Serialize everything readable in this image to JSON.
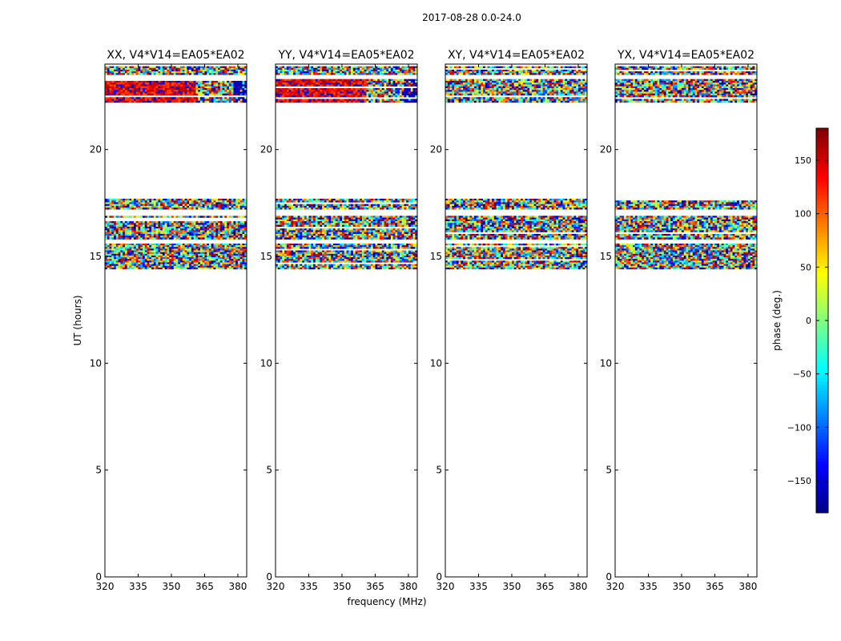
{
  "figure_title": "2017-08-28 0.0-24.0",
  "chart_data": {
    "type": "heatmap",
    "xlabel": "frequency (MHz)",
    "ylabel": "UT (hours)",
    "xlim": [
      320,
      384
    ],
    "ylim": [
      0,
      24
    ],
    "x_ticks": [
      320,
      335,
      350,
      365,
      380
    ],
    "y_ticks": [
      0,
      5,
      10,
      15,
      20
    ],
    "colorbar": {
      "label": "phase (deg.)",
      "range": [
        -180,
        180
      ],
      "ticks": [
        -150,
        -100,
        -50,
        0,
        50,
        100,
        150
      ],
      "colormap": "jet",
      "colors": [
        "#00007f",
        "#0000ff",
        "#007fff",
        "#00ffff",
        "#7fff7f",
        "#ffff00",
        "#ff7f00",
        "#ff0000",
        "#7f0000"
      ]
    },
    "panels": [
      {
        "title": "XX, V4*V14=EA05*EA02",
        "polarization": "XX",
        "data_rows": [
          {
            "ut_start": 14.4,
            "ut_end": 15.6,
            "phase": "random"
          },
          {
            "ut_start": 15.8,
            "ut_end": 16.9,
            "phase": "random"
          },
          {
            "ut_start": 17.2,
            "ut_end": 17.7,
            "phase": "random"
          },
          {
            "ut_start": 22.2,
            "ut_end": 23.3,
            "phase": "red_to_blue",
            "mean_deg": 150,
            "freq_split": 361
          },
          {
            "ut_start": 23.5,
            "ut_end": 23.9,
            "phase": "random"
          }
        ]
      },
      {
        "title": "YY, V4*V14=EA05*EA02",
        "polarization": "YY",
        "data_rows": [
          {
            "ut_start": 14.4,
            "ut_end": 15.6,
            "phase": "random"
          },
          {
            "ut_start": 15.8,
            "ut_end": 16.9,
            "phase": "random"
          },
          {
            "ut_start": 17.2,
            "ut_end": 17.7,
            "phase": "random"
          },
          {
            "ut_start": 22.2,
            "ut_end": 23.3,
            "phase": "red_to_blue",
            "mean_deg": 150,
            "freq_split": 361
          },
          {
            "ut_start": 23.5,
            "ut_end": 23.9,
            "phase": "random"
          }
        ]
      },
      {
        "title": "XY, V4*V14=EA05*EA02",
        "polarization": "XY",
        "data_rows": [
          {
            "ut_start": 14.4,
            "ut_end": 15.6,
            "phase": "random"
          },
          {
            "ut_start": 15.8,
            "ut_end": 16.9,
            "phase": "random"
          },
          {
            "ut_start": 17.2,
            "ut_end": 17.7,
            "phase": "random"
          },
          {
            "ut_start": 22.2,
            "ut_end": 23.3,
            "phase": "random"
          },
          {
            "ut_start": 23.5,
            "ut_end": 23.9,
            "phase": "random"
          }
        ]
      },
      {
        "title": "YX, V4*V14=EA05*EA02",
        "polarization": "YX",
        "data_rows": [
          {
            "ut_start": 14.4,
            "ut_end": 15.6,
            "phase": "random"
          },
          {
            "ut_start": 15.8,
            "ut_end": 16.9,
            "phase": "random"
          },
          {
            "ut_start": 17.2,
            "ut_end": 17.7,
            "phase": "random"
          },
          {
            "ut_start": 22.2,
            "ut_end": 23.3,
            "phase": "random"
          },
          {
            "ut_start": 23.5,
            "ut_end": 23.9,
            "phase": "random"
          }
        ]
      }
    ]
  }
}
